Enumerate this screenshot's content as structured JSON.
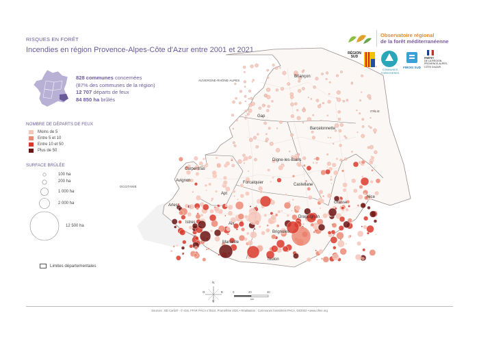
{
  "header": {
    "kicker": "RISQUES EN FORÊT",
    "title": "Incendies en région Provence-Alpes-Côte d'Azur entre 2001 et 2021"
  },
  "stats": {
    "communes_value": "828 communes",
    "communes_text": "concernées",
    "communes_share": "(87% des communes de la région)",
    "departs_value": "12 707",
    "departs_text": "départs de feux",
    "hectares_value": "84 850 ha",
    "hectares_text": "brûlés"
  },
  "legend_departs": {
    "title": "NOMBRE DE DÉPARTS DE FEUX",
    "items": [
      {
        "label": "Moins de 5",
        "color": "#f4c6b8"
      },
      {
        "label": "Entre 5 et 10",
        "color": "#ec8a74"
      },
      {
        "label": "Entre 10 et 50",
        "color": "#d93a2b"
      },
      {
        "label": "Plus de 50",
        "color": "#6b1414"
      }
    ]
  },
  "legend_surface": {
    "title": "SURFACE BRÛLÉE",
    "items": [
      {
        "label": "100 ha",
        "hectares": 100
      },
      {
        "label": "200 ha",
        "hectares": 200
      },
      {
        "label": "1 000 ha",
        "hectares": 1000
      },
      {
        "label": "2 000 ha",
        "hectares": 2000
      },
      {
        "label": "12 500 ha",
        "hectares": 12500
      }
    ]
  },
  "legend_limits": {
    "label": "Limites départementales"
  },
  "regions": {
    "auvergne": "AUVERGNE-RHÔNE-ALPES",
    "occitanie": "OCCITANIE",
    "italie": "ITALIE"
  },
  "cities": [
    "Briançon",
    "Gap",
    "Barcelonnette",
    "Digne-les-Bains",
    "Carpentras",
    "Avignon",
    "Forcalquier",
    "Castellane",
    "Apt",
    "Nice",
    "Grasse",
    "Arles",
    "Istres",
    "Aix",
    "Draguignan",
    "Brignoles",
    "Marseille",
    "Toulon"
  ],
  "compass": {
    "n": "N",
    "s": "S",
    "e": "E",
    "o": "O"
  },
  "scale": {
    "ticks": [
      "0",
      "20",
      "40"
    ],
    "unit": "km"
  },
  "logos": {
    "observatoire_line1": "Observatoire régional",
    "observatoire_line2": "de la forêt méditerranéenne",
    "region_sud_line1": "RÉGION",
    "region_sud_line2": "SUD",
    "communes_forestieres": "COMMUNES FORESTIÈRES",
    "fibois": "FIBOIS SUD",
    "prefet_line1": "PRÉFET",
    "prefet_line2": "DE LA RÉGION",
    "prefet_line3": "PROVENCE-ALPES-",
    "prefet_line4": "CÔTE D'AZUR"
  },
  "source": "Sources : BD Carto® - © IGN, FFAR PACA n°8410, Prométhée 2021 • Réalisation : Communes forestières PACA, 04/2022 • www.ofme.org"
}
